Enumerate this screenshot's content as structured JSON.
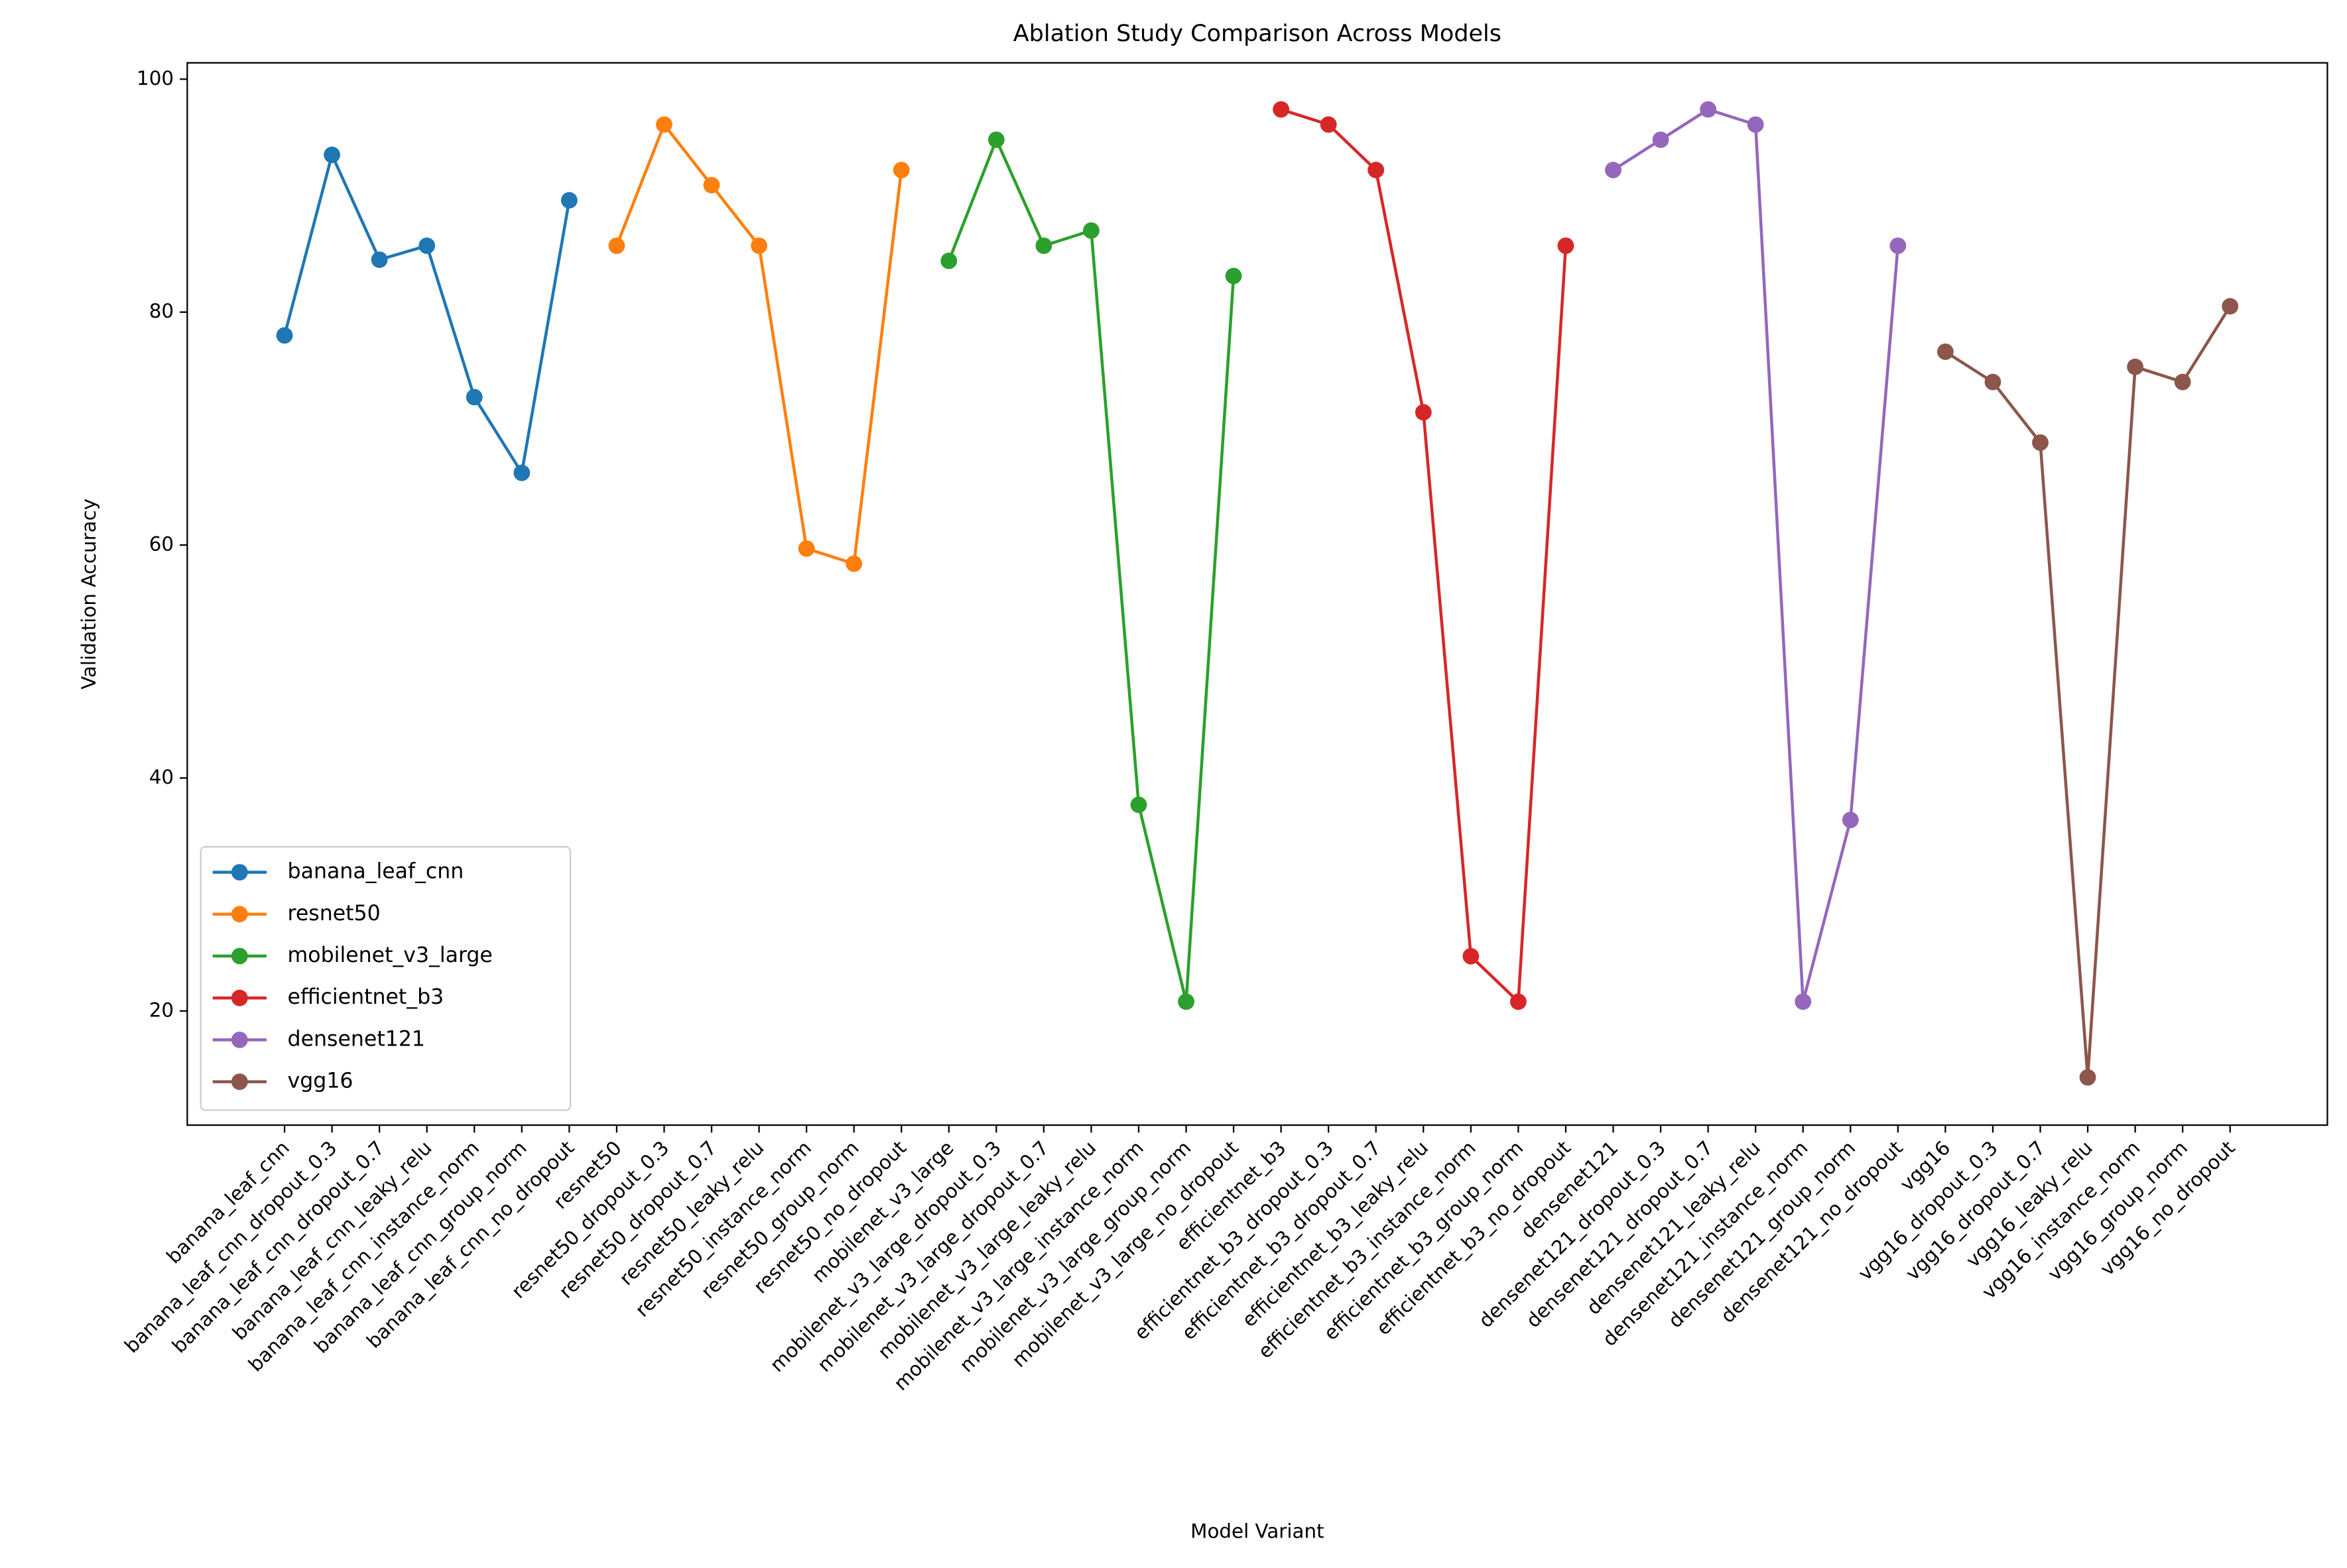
{
  "chart_data": {
    "type": "line",
    "title": "Ablation Study Comparison Across Models",
    "xlabel": "Model Variant",
    "ylabel": "Validation Accuracy",
    "categories": [
      "banana_leaf_cnn",
      "banana_leaf_cnn_dropout_0.3",
      "banana_leaf_cnn_dropout_0.7",
      "banana_leaf_cnn_leaky_relu",
      "banana_leaf_cnn_instance_norm",
      "banana_leaf_cnn_group_norm",
      "banana_leaf_cnn_no_dropout",
      "resnet50",
      "resnet50_dropout_0.3",
      "resnet50_dropout_0.7",
      "resnet50_leaky_relu",
      "resnet50_instance_norm",
      "resnet50_group_norm",
      "resnet50_no_dropout",
      "mobilenet_v3_large",
      "mobilenet_v3_large_dropout_0.3",
      "mobilenet_v3_large_dropout_0.7",
      "mobilenet_v3_large_leaky_relu",
      "mobilenet_v3_large_instance_norm",
      "mobilenet_v3_large_group_norm",
      "mobilenet_v3_large_no_dropout",
      "efficientnet_b3",
      "efficientnet_b3_dropout_0.3",
      "efficientnet_b3_dropout_0.7",
      "efficientnet_b3_leaky_relu",
      "efficientnet_b3_instance_norm",
      "efficientnet_b3_group_norm",
      "efficientnet_b3_no_dropout",
      "densenet121",
      "densenet121_dropout_0.3",
      "densenet121_dropout_0.7",
      "densenet121_leaky_relu",
      "densenet121_instance_norm",
      "densenet121_group_norm",
      "densenet121_no_dropout",
      "vgg16",
      "vgg16_dropout_0.3",
      "vgg16_dropout_0.7",
      "vgg16_leaky_relu",
      "vgg16_instance_norm",
      "vgg16_group_norm",
      "vgg16_no_dropout"
    ],
    "series": [
      {
        "name": "banana_leaf_cnn",
        "color": "#1f77b4",
        "values": [
          78.0,
          93.5,
          84.5,
          85.7,
          72.7,
          66.2,
          89.6,
          null,
          null,
          null,
          null,
          null,
          null,
          null,
          null,
          null,
          null,
          null,
          null,
          null,
          null,
          null,
          null,
          null,
          null,
          null,
          null,
          null,
          null,
          null,
          null,
          null,
          null,
          null,
          null,
          null,
          null,
          null,
          null,
          null,
          null,
          null
        ]
      },
      {
        "name": "resnet50",
        "color": "#ff7f0e",
        "values": [
          null,
          null,
          null,
          null,
          null,
          null,
          null,
          85.7,
          96.1,
          90.9,
          85.7,
          59.7,
          58.4,
          92.2,
          null,
          null,
          null,
          null,
          null,
          null,
          null,
          null,
          null,
          null,
          null,
          null,
          null,
          null,
          null,
          null,
          null,
          null,
          null,
          null,
          null,
          null,
          null,
          null,
          null,
          null,
          null,
          null
        ]
      },
      {
        "name": "mobilenet_v3_large",
        "color": "#2ca02c",
        "values": [
          null,
          null,
          null,
          null,
          null,
          null,
          null,
          null,
          null,
          null,
          null,
          null,
          null,
          null,
          84.4,
          94.8,
          85.7,
          87.0,
          37.7,
          20.8,
          83.1,
          null,
          null,
          null,
          null,
          null,
          null,
          null,
          null,
          null,
          null,
          null,
          null,
          null,
          null,
          null,
          null,
          null,
          null,
          null,
          null,
          null
        ]
      },
      {
        "name": "efficientnet_b3",
        "color": "#d62728",
        "values": [
          null,
          null,
          null,
          null,
          null,
          null,
          null,
          null,
          null,
          null,
          null,
          null,
          null,
          null,
          null,
          null,
          null,
          null,
          null,
          null,
          null,
          97.4,
          96.1,
          92.2,
          71.4,
          24.7,
          20.8,
          85.7,
          null,
          null,
          null,
          null,
          null,
          null,
          null,
          null,
          null,
          null,
          null,
          null,
          null,
          null
        ]
      },
      {
        "name": "densenet121",
        "color": "#9467bd",
        "values": [
          null,
          null,
          null,
          null,
          null,
          null,
          null,
          null,
          null,
          null,
          null,
          null,
          null,
          null,
          null,
          null,
          null,
          null,
          null,
          null,
          null,
          null,
          null,
          null,
          null,
          null,
          null,
          null,
          92.2,
          94.8,
          97.4,
          96.1,
          20.8,
          36.4,
          85.7,
          null,
          null,
          null,
          null,
          null,
          null,
          null
        ]
      },
      {
        "name": "vgg16",
        "color": "#8c564b",
        "values": [
          null,
          null,
          null,
          null,
          null,
          null,
          null,
          null,
          null,
          null,
          null,
          null,
          null,
          null,
          null,
          null,
          null,
          null,
          null,
          null,
          null,
          null,
          null,
          null,
          null,
          null,
          null,
          null,
          null,
          null,
          null,
          null,
          null,
          null,
          null,
          76.6,
          74.0,
          68.8,
          14.3,
          75.3,
          74.0,
          80.5
        ]
      }
    ],
    "ylim": [
      10.2,
      101.4
    ],
    "yticks": [
      20,
      40,
      60,
      80,
      100
    ],
    "legend": "lower left"
  }
}
